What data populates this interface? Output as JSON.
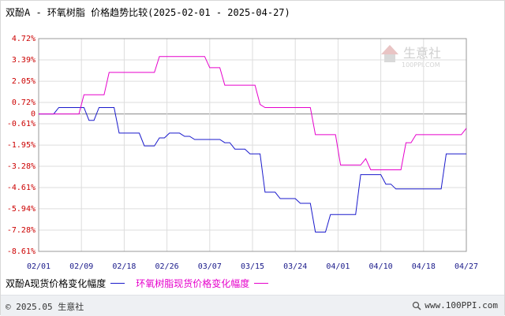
{
  "header": {
    "title": "双酚A - 环氧树脂 价格趋势比较(2025-02-01 - 2025-04-27)"
  },
  "watermark": {
    "brand": "生意社",
    "url": "100PPI.COM"
  },
  "footer": {
    "copyright": "© 2025.05 生意社",
    "site": "www.100PPI.com"
  },
  "colors": {
    "series_a": "#1a1acc",
    "series_b": "#e600cc",
    "tick_y": "#cc0000",
    "tick_x": "#1a1a8a",
    "grid": "#dddddd",
    "zero": "#888888"
  },
  "chart_data": {
    "type": "line",
    "title": "双酚A - 环氧树脂 价格趋势比较(2025-02-01 - 2025-04-27)",
    "xlabel": "",
    "ylabel": "",
    "x_ticks": [
      "02/01",
      "02/09",
      "02/18",
      "02/26",
      "03/07",
      "03/15",
      "03/24",
      "04/01",
      "04/10",
      "04/18",
      "04/27"
    ],
    "y_ticks": [
      "4.72%",
      "3.39%",
      "2.05%",
      "0.72%",
      "0",
      "-0.61%",
      "-1.95%",
      "-3.28%",
      "-4.61%",
      "-5.94%",
      "-7.28%",
      "-8.61%"
    ],
    "y_tick_values": [
      4.72,
      3.39,
      2.05,
      0.72,
      0,
      -0.61,
      -1.95,
      -3.28,
      -4.61,
      -5.94,
      -7.28,
      -8.61
    ],
    "ylim": [
      -8.61,
      4.72
    ],
    "grid": true,
    "legend_position": "bottom-left",
    "series": [
      {
        "name": "双酚A现货价格变化幅度",
        "color": "#1a1acc",
        "points": [
          [
            "2025-02-01",
            0
          ],
          [
            "2025-02-04",
            0
          ],
          [
            "2025-02-05",
            0.4
          ],
          [
            "2025-02-10",
            0.4
          ],
          [
            "2025-02-11",
            -0.4
          ],
          [
            "2025-02-12",
            -0.4
          ],
          [
            "2025-02-13",
            0.4
          ],
          [
            "2025-02-16",
            0.4
          ],
          [
            "2025-02-17",
            -1.2
          ],
          [
            "2025-02-21",
            -1.2
          ],
          [
            "2025-02-22",
            -2.0
          ],
          [
            "2025-02-24",
            -2.0
          ],
          [
            "2025-02-25",
            -1.5
          ],
          [
            "2025-02-26",
            -1.5
          ],
          [
            "2025-02-27",
            -1.2
          ],
          [
            "2025-03-01",
            -1.2
          ],
          [
            "2025-03-02",
            -1.4
          ],
          [
            "2025-03-03",
            -1.4
          ],
          [
            "2025-03-04",
            -1.6
          ],
          [
            "2025-03-09",
            -1.6
          ],
          [
            "2025-03-10",
            -1.8
          ],
          [
            "2025-03-11",
            -1.8
          ],
          [
            "2025-03-12",
            -2.2
          ],
          [
            "2025-03-14",
            -2.2
          ],
          [
            "2025-03-15",
            -2.5
          ],
          [
            "2025-03-17",
            -2.5
          ],
          [
            "2025-03-18",
            -4.9
          ],
          [
            "2025-03-20",
            -4.9
          ],
          [
            "2025-03-21",
            -5.3
          ],
          [
            "2025-03-24",
            -5.3
          ],
          [
            "2025-03-25",
            -5.6
          ],
          [
            "2025-03-27",
            -5.6
          ],
          [
            "2025-03-28",
            -7.4
          ],
          [
            "2025-03-30",
            -7.4
          ],
          [
            "2025-03-31",
            -6.3
          ],
          [
            "2025-04-05",
            -6.3
          ],
          [
            "2025-04-06",
            -3.8
          ],
          [
            "2025-04-10",
            -3.8
          ],
          [
            "2025-04-11",
            -4.4
          ],
          [
            "2025-04-12",
            -4.4
          ],
          [
            "2025-04-13",
            -4.7
          ],
          [
            "2025-04-22",
            -4.7
          ],
          [
            "2025-04-23",
            -2.5
          ],
          [
            "2025-04-27",
            -2.5
          ]
        ]
      },
      {
        "name": "环氧树脂现货价格变化幅度",
        "color": "#e600cc",
        "points": [
          [
            "2025-02-01",
            0
          ],
          [
            "2025-02-09",
            0
          ],
          [
            "2025-02-10",
            1.2
          ],
          [
            "2025-02-14",
            1.2
          ],
          [
            "2025-02-15",
            2.6
          ],
          [
            "2025-02-24",
            2.6
          ],
          [
            "2025-02-25",
            3.6
          ],
          [
            "2025-03-06",
            3.6
          ],
          [
            "2025-03-07",
            2.9
          ],
          [
            "2025-03-09",
            2.9
          ],
          [
            "2025-03-10",
            1.8
          ],
          [
            "2025-03-16",
            1.8
          ],
          [
            "2025-03-17",
            0.6
          ],
          [
            "2025-03-18",
            0.4
          ],
          [
            "2025-03-27",
            0.4
          ],
          [
            "2025-03-28",
            -1.3
          ],
          [
            "2025-04-01",
            -1.3
          ],
          [
            "2025-04-02",
            -3.2
          ],
          [
            "2025-04-06",
            -3.2
          ],
          [
            "2025-04-07",
            -2.8
          ],
          [
            "2025-04-08",
            -3.5
          ],
          [
            "2025-04-14",
            -3.5
          ],
          [
            "2025-04-15",
            -1.8
          ],
          [
            "2025-04-16",
            -1.8
          ],
          [
            "2025-04-17",
            -1.3
          ],
          [
            "2025-04-26",
            -1.3
          ],
          [
            "2025-04-27",
            -0.9
          ]
        ]
      }
    ]
  }
}
